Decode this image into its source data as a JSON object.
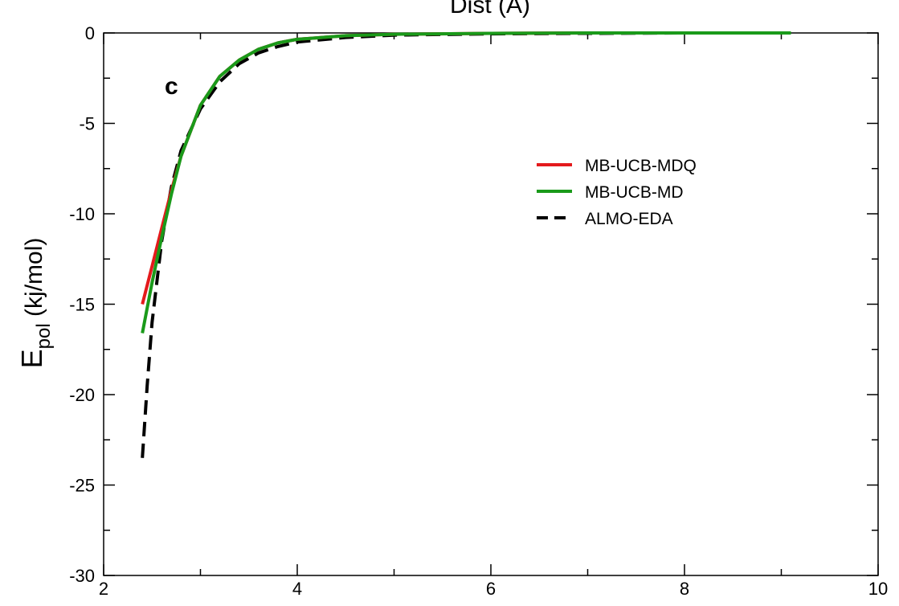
{
  "chart_data": {
    "type": "line",
    "title": "",
    "xlabel": "Dist (A)",
    "ylabel_main": "E",
    "ylabel_sub": "pol",
    "ylabel_unit": " (kj/mol)",
    "panel_label": "c",
    "xlim": [
      2,
      10
    ],
    "ylim": [
      -30,
      0
    ],
    "x_ticks": [
      2,
      4,
      6,
      8,
      10
    ],
    "y_ticks": [
      0,
      -5,
      -10,
      -15,
      -20,
      -25,
      -30
    ],
    "grid": false,
    "legend_position": "upper-right-center",
    "series": [
      {
        "name": "MB-UCB-MDQ",
        "color": "#e41a1c",
        "dash": "solid",
        "x": [
          2.4,
          2.5,
          2.6,
          2.7,
          2.8,
          3.0,
          3.2,
          3.4,
          3.6,
          3.8,
          4.0,
          4.5,
          5.0,
          6.0,
          7.0,
          8.0,
          9.0,
          9.1
        ],
        "y": [
          -15.0,
          -12.9,
          -10.8,
          -8.7,
          -6.8,
          -4.0,
          -2.4,
          -1.5,
          -0.9,
          -0.55,
          -0.35,
          -0.15,
          -0.07,
          -0.02,
          0,
          0,
          0,
          0
        ]
      },
      {
        "name": "MB-UCB-MD",
        "color": "#1a9a1a",
        "dash": "solid",
        "x": [
          2.4,
          2.5,
          2.6,
          2.7,
          2.8,
          3.0,
          3.2,
          3.4,
          3.6,
          3.8,
          4.0,
          4.5,
          5.0,
          6.0,
          7.0,
          8.0,
          9.0,
          9.1
        ],
        "y": [
          -16.6,
          -13.8,
          -11.3,
          -8.9,
          -6.8,
          -4.0,
          -2.4,
          -1.5,
          -0.9,
          -0.55,
          -0.35,
          -0.15,
          -0.07,
          -0.02,
          0,
          0,
          0,
          0
        ]
      },
      {
        "name": "ALMO-EDA",
        "color": "#000000",
        "dash": "dashed",
        "x": [
          2.4,
          2.45,
          2.5,
          2.6,
          2.7,
          2.8,
          3.0,
          3.2,
          3.4,
          3.6,
          3.8,
          4.0,
          4.5,
          5.0,
          6.0,
          7.0,
          8.0,
          9.0,
          9.1
        ],
        "y": [
          -23.5,
          -19.5,
          -16.0,
          -11.5,
          -8.5,
          -6.5,
          -4.2,
          -2.7,
          -1.7,
          -1.1,
          -0.75,
          -0.5,
          -0.25,
          -0.12,
          -0.05,
          -0.02,
          0,
          0,
          0
        ]
      }
    ]
  }
}
